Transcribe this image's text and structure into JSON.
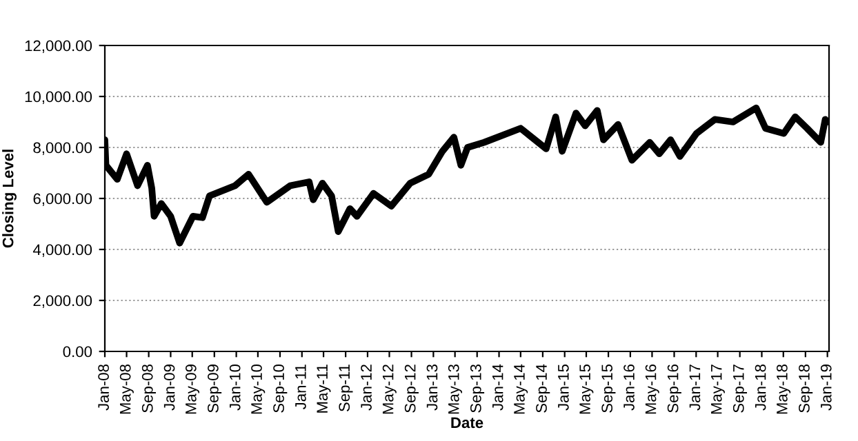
{
  "chart_data": {
    "type": "line",
    "xlabel": "Date",
    "ylabel": "Closing Level",
    "grid": "y",
    "line_style": "solid",
    "marker": "none",
    "xlim": [
      "2008-01",
      "2019-01-10"
    ],
    "ylim": [
      0,
      12000
    ],
    "yticks": [
      {
        "value": 0,
        "label": "0.00"
      },
      {
        "value": 2000,
        "label": "2,000.00"
      },
      {
        "value": 4000,
        "label": "4,000.00"
      },
      {
        "value": 6000,
        "label": "6,000.00"
      },
      {
        "value": 8000,
        "label": "8,000.00"
      },
      {
        "value": 10000,
        "label": "10,000.00"
      },
      {
        "value": 12000,
        "label": "12,000.00"
      }
    ],
    "xticks": [
      {
        "value": "2008-01",
        "label": "Jan-08"
      },
      {
        "value": "2008-05",
        "label": "May-08"
      },
      {
        "value": "2008-09",
        "label": "Sep-08"
      },
      {
        "value": "2009-01",
        "label": "Jan-09"
      },
      {
        "value": "2009-05",
        "label": "May-09"
      },
      {
        "value": "2009-09",
        "label": "Sep-09"
      },
      {
        "value": "2010-01",
        "label": "Jan-10"
      },
      {
        "value": "2010-05",
        "label": "May-10"
      },
      {
        "value": "2010-09",
        "label": "Sep-10"
      },
      {
        "value": "2011-01",
        "label": "Jan-11"
      },
      {
        "value": "2011-05",
        "label": "May-11"
      },
      {
        "value": "2011-09",
        "label": "Sep-11"
      },
      {
        "value": "2012-01",
        "label": "Jan-12"
      },
      {
        "value": "2012-05",
        "label": "May-12"
      },
      {
        "value": "2012-09",
        "label": "Sep-12"
      },
      {
        "value": "2013-01",
        "label": "Jan-13"
      },
      {
        "value": "2013-05",
        "label": "May-13"
      },
      {
        "value": "2013-09",
        "label": "Sep-13"
      },
      {
        "value": "2014-01",
        "label": "Jan-14"
      },
      {
        "value": "2014-05",
        "label": "May-14"
      },
      {
        "value": "2014-09",
        "label": "Sep-14"
      },
      {
        "value": "2015-01",
        "label": "Jan-15"
      },
      {
        "value": "2015-05",
        "label": "May-15"
      },
      {
        "value": "2015-09",
        "label": "Sep-15"
      },
      {
        "value": "2016-01",
        "label": "Jan-16"
      },
      {
        "value": "2016-05",
        "label": "May-16"
      },
      {
        "value": "2016-09",
        "label": "Sep-16"
      },
      {
        "value": "2017-01",
        "label": "Jan-17"
      },
      {
        "value": "2017-05",
        "label": "May-17"
      },
      {
        "value": "2017-09",
        "label": "Sep-17"
      },
      {
        "value": "2018-01",
        "label": "Jan-18"
      },
      {
        "value": "2018-05",
        "label": "May-18"
      },
      {
        "value": "2018-09",
        "label": "Sep-18"
      },
      {
        "value": "2019-01",
        "label": "Jan-19"
      }
    ],
    "x": [
      "2008-01-01",
      "2008-01-07",
      "2008-03-10",
      "2008-05-01",
      "2008-07-01",
      "2008-08-25",
      "2008-09-18",
      "2008-10-01",
      "2008-11-10",
      "2009-01-01",
      "2009-02-20",
      "2009-05-05",
      "2009-06-27",
      "2009-08-05",
      "2009-12-25",
      "2010-03-10",
      "2010-06-20",
      "2010-10-28",
      "2011-02-10",
      "2011-03-05",
      "2011-04-25",
      "2011-06-15",
      "2011-07-22",
      "2011-09-25",
      "2011-11-03",
      "2012-02-03",
      "2012-05-12",
      "2012-08-25",
      "2012-12-06",
      "2013-02-20",
      "2013-04-25",
      "2013-06-03",
      "2013-07-10",
      "2013-10-10",
      "2014-05-01",
      "2014-09-20",
      "2014-11-12",
      "2014-12-18",
      "2015-03-05",
      "2015-04-25",
      "2015-07-01",
      "2015-08-05",
      "2015-10-25",
      "2016-01-10",
      "2016-04-18",
      "2016-06-10",
      "2016-08-12",
      "2016-10-03",
      "2017-01-03",
      "2017-04-15",
      "2017-07-25",
      "2017-12-01",
      "2018-01-22",
      "2018-05-03",
      "2018-07-06",
      "2018-09-10",
      "2018-11-25",
      "2018-12-20",
      "2019-01-01"
    ],
    "series": [
      {
        "color": "#000000",
        "values": [
          8300,
          7300,
          6750,
          7750,
          6500,
          7300,
          6400,
          5300,
          5800,
          5300,
          4250,
          5300,
          5250,
          6100,
          6500,
          6950,
          5850,
          6500,
          6650,
          5950,
          6600,
          6100,
          4700,
          5600,
          5300,
          6200,
          5700,
          6600,
          6950,
          7850,
          8400,
          7300,
          8000,
          8200,
          8750,
          7950,
          9200,
          7850,
          9350,
          8850,
          9450,
          8300,
          8900,
          7500,
          8200,
          7750,
          8300,
          7650,
          8550,
          9100,
          9000,
          9550,
          8750,
          8550,
          9200,
          8750,
          8200,
          9100,
          9000
        ]
      }
    ]
  }
}
